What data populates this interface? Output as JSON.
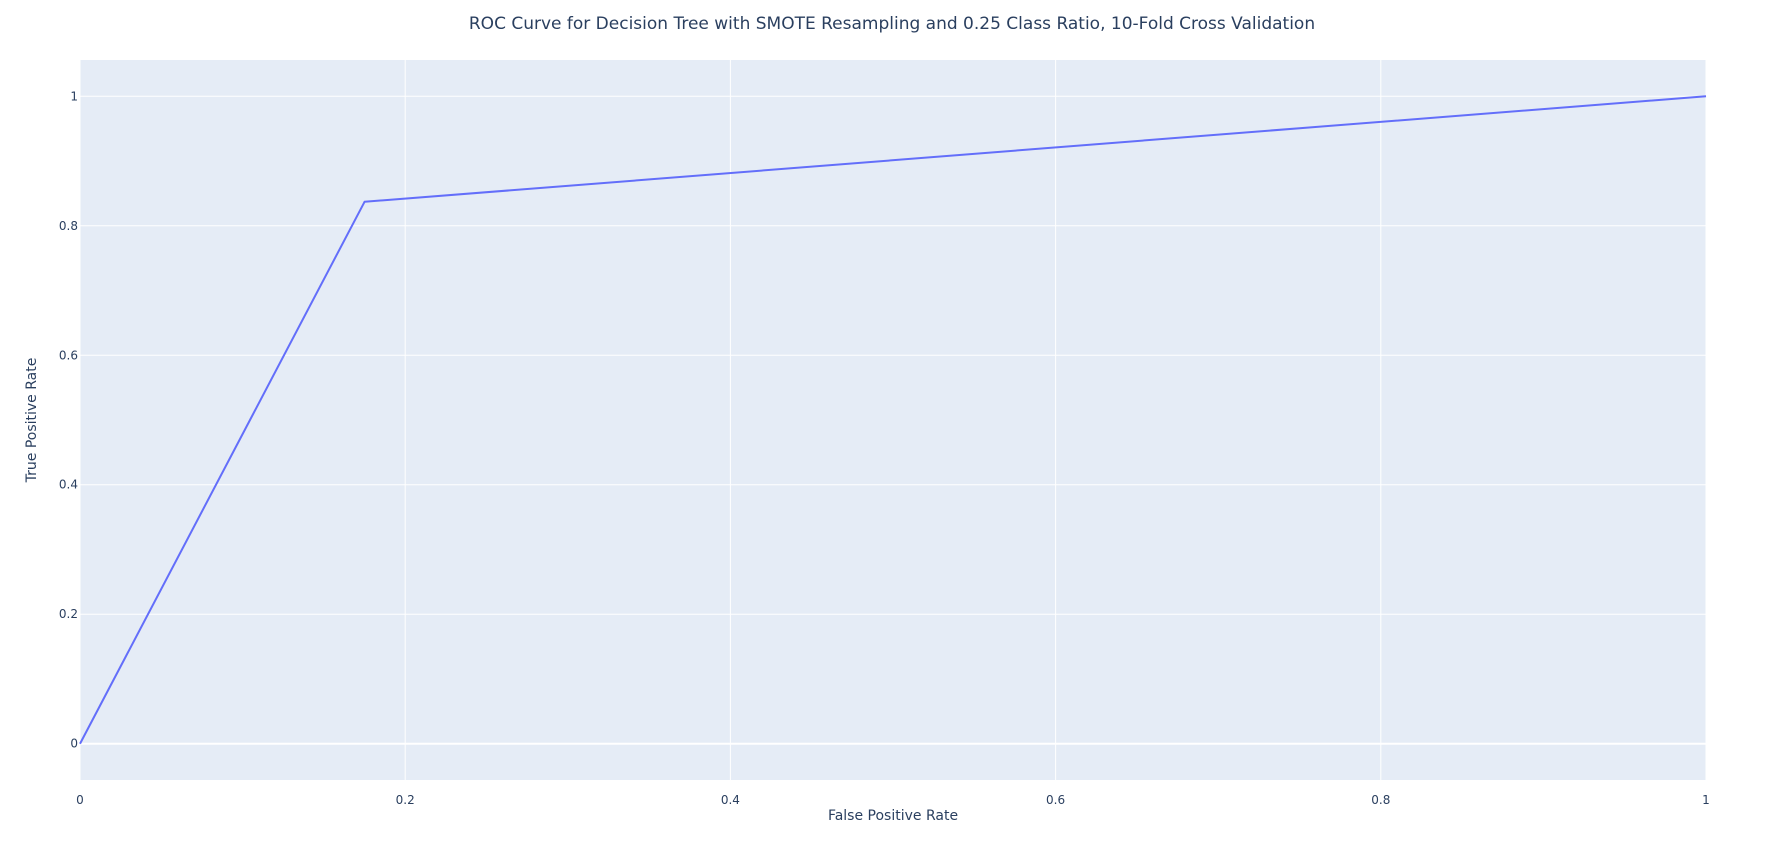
{
  "chart_data": {
    "type": "line",
    "title": "ROC Curve for Decision Tree with SMOTE Resampling and 0.25 Class Ratio, 10-Fold Cross Validation",
    "xlabel": "False Positive Rate",
    "ylabel": "True Positive Rate",
    "xlim": [
      0,
      1
    ],
    "ylim": [
      -0.056,
      1.056
    ],
    "x_ticks": [
      0,
      0.2,
      0.4,
      0.6,
      0.8,
      1
    ],
    "x_tick_labels": [
      "0",
      "0.2",
      "0.4",
      "0.6",
      "0.8",
      "1"
    ],
    "y_ticks": [
      0,
      0.2,
      0.4,
      0.6,
      0.8,
      1
    ],
    "y_tick_labels": [
      "0",
      "0.2",
      "0.4",
      "0.6",
      "0.8",
      "1"
    ],
    "grid": true,
    "series": [
      {
        "x": [
          0,
          0.175,
          1
        ],
        "y": [
          0,
          0.837,
          1
        ],
        "color": "#636efa"
      }
    ],
    "colors": {
      "plot_background": "#e5ecf6",
      "grid": "#ffffff",
      "text": "#2a3f5f",
      "line": "#636efa"
    }
  }
}
